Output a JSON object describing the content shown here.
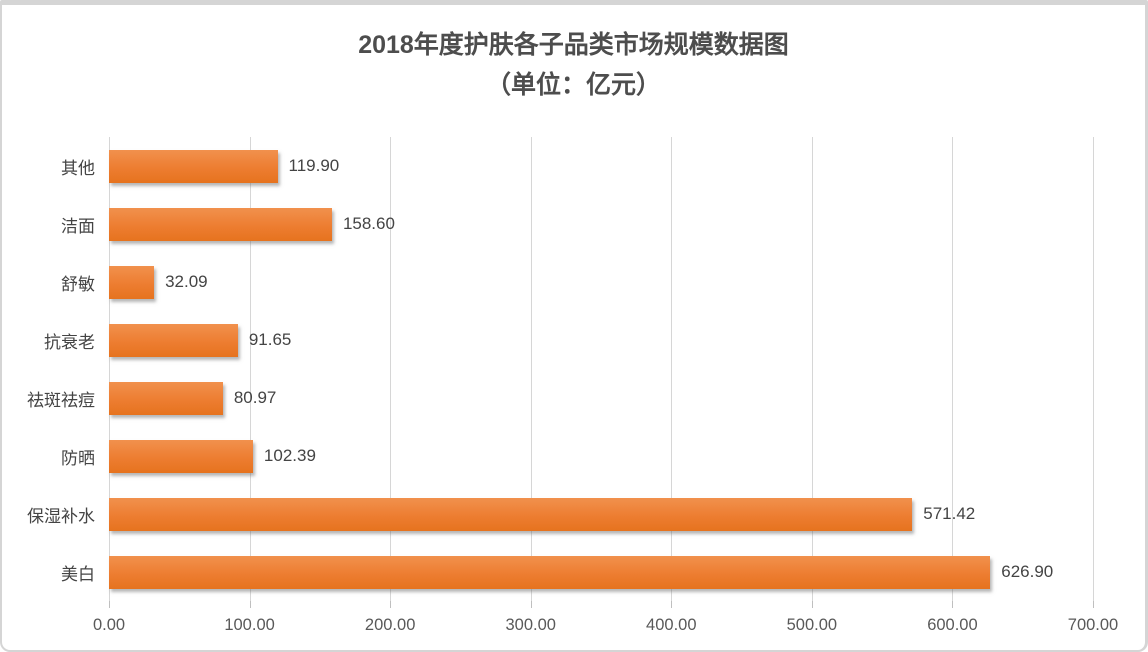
{
  "title": {
    "line1": "2018年度护肤各子品类市场规模数据图",
    "line2": "（单位：亿元）"
  },
  "chart_data": {
    "type": "bar",
    "orientation": "horizontal",
    "title": "2018年度护肤各子品类市场规模数据图（单位：亿元）",
    "xlabel": "",
    "ylabel": "",
    "categories": [
      "其他",
      "洁面",
      "舒敏",
      "抗衰老",
      "祛斑祛痘",
      "防晒",
      "保湿补水",
      "美白"
    ],
    "values": [
      119.9,
      158.6,
      32.09,
      91.65,
      80.97,
      102.39,
      571.42,
      626.9
    ],
    "value_labels": [
      "119.90",
      "158.60",
      "32.09",
      "91.65",
      "80.97",
      "102.39",
      "571.42",
      "626.90"
    ],
    "x_tick_labels": [
      "0.00",
      "100.00",
      "200.00",
      "300.00",
      "400.00",
      "500.00",
      "600.00",
      "700.00"
    ],
    "xlim": [
      0,
      700
    ],
    "grid": "vertical-on",
    "legend": "none",
    "colors": {
      "bar_top": "#f1914d",
      "bar_bottom": "#e6731e",
      "gridline": "#d6d6d6",
      "label_text": "#444444",
      "axis_text": "#595959",
      "title_text": "#4d4d4d",
      "card_border": "#d5d5d5"
    }
  }
}
